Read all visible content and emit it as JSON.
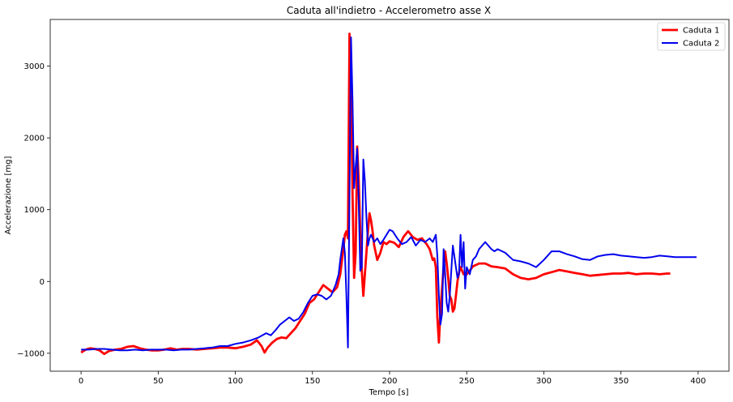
{
  "chart_data": {
    "type": "line",
    "title": "Caduta all'indietro - Accelerometro asse X",
    "xlabel": "Tempo [s]",
    "ylabel": "Accelerazione [mg]",
    "xlim": [
      -20,
      420
    ],
    "ylim": [
      -1250,
      3650
    ],
    "xticks": [
      0,
      50,
      100,
      150,
      200,
      250,
      300,
      350,
      400
    ],
    "yticks": [
      -1000,
      0,
      1000,
      2000,
      3000
    ],
    "grid": false,
    "legend_position": "top-right",
    "series": [
      {
        "name": "Caduta 1",
        "color": "#ff0000",
        "x": [
          0,
          3,
          6,
          9,
          12,
          15,
          18,
          22,
          26,
          30,
          34,
          38,
          42,
          46,
          50,
          54,
          58,
          62,
          66,
          70,
          75,
          80,
          85,
          90,
          95,
          100,
          105,
          110,
          114,
          117,
          119,
          121,
          124,
          127,
          130,
          133,
          136,
          139,
          142,
          145,
          148,
          151,
          154,
          157,
          160,
          163,
          166,
          168,
          170,
          171,
          172,
          173,
          174,
          175,
          176,
          177,
          178,
          179,
          180,
          181,
          182,
          183,
          184,
          185,
          186,
          187,
          188,
          189,
          190,
          192,
          194,
          196,
          198,
          200,
          203,
          206,
          209,
          212,
          215,
          218,
          221,
          224,
          226,
          228,
          229,
          230,
          231,
          232,
          233,
          234,
          235,
          236,
          237,
          238,
          239,
          240,
          241,
          242,
          243,
          244,
          245,
          246,
          247,
          248,
          250,
          252,
          254,
          256,
          258,
          262,
          266,
          270,
          275,
          280,
          285,
          290,
          295,
          300,
          305,
          310,
          315,
          320,
          325,
          330,
          335,
          340,
          345,
          350,
          355,
          360,
          365,
          370,
          375,
          380,
          382
        ],
        "y": [
          -990,
          -950,
          -930,
          -940,
          -960,
          -1010,
          -970,
          -950,
          -940,
          -910,
          -900,
          -930,
          -950,
          -960,
          -960,
          -950,
          -930,
          -950,
          -940,
          -940,
          -950,
          -940,
          -930,
          -920,
          -920,
          -930,
          -910,
          -880,
          -820,
          -900,
          -990,
          -920,
          -850,
          -800,
          -780,
          -790,
          -720,
          -650,
          -550,
          -450,
          -300,
          -250,
          -150,
          -50,
          -100,
          -150,
          -80,
          100,
          450,
          650,
          700,
          600,
          3450,
          2800,
          1200,
          50,
          400,
          1880,
          1400,
          700,
          150,
          -200,
          100,
          400,
          700,
          950,
          850,
          700,
          500,
          300,
          400,
          550,
          520,
          560,
          540,
          480,
          620,
          700,
          620,
          580,
          600,
          520,
          450,
          300,
          320,
          200,
          -500,
          -850,
          -400,
          -100,
          200,
          420,
          250,
          50,
          -200,
          -250,
          -420,
          -380,
          -200,
          0,
          120,
          200,
          150,
          100,
          100,
          150,
          210,
          230,
          250,
          250,
          210,
          200,
          180,
          100,
          50,
          30,
          50,
          100,
          130,
          160,
          140,
          120,
          100,
          80,
          90,
          100,
          110,
          110,
          120,
          100,
          110,
          110,
          100,
          110,
          110
        ]
      },
      {
        "name": "Caduta 2",
        "color": "#0000ee",
        "x": [
          0,
          5,
          10,
          15,
          20,
          25,
          30,
          35,
          40,
          45,
          50,
          55,
          60,
          65,
          70,
          75,
          80,
          85,
          90,
          95,
          100,
          105,
          110,
          115,
          120,
          123,
          126,
          129,
          132,
          135,
          138,
          141,
          144,
          147,
          150,
          153,
          156,
          159,
          162,
          165,
          167,
          168,
          170,
          171,
          172,
          173,
          174,
          175,
          176,
          177,
          178,
          179,
          180,
          181,
          182,
          183,
          184,
          185,
          186,
          187,
          188,
          190,
          192,
          194,
          196,
          198,
          200,
          202,
          205,
          208,
          211,
          214,
          217,
          220,
          223,
          226,
          228,
          230,
          231,
          232,
          233,
          234,
          235,
          236,
          237,
          238,
          239,
          240,
          241,
          242,
          243,
          244,
          245,
          246,
          247,
          248,
          249,
          250,
          252,
          254,
          256,
          258,
          260,
          262,
          264,
          266,
          268,
          270,
          275,
          280,
          285,
          290,
          295,
          300,
          305,
          310,
          315,
          320,
          325,
          330,
          335,
          340,
          345,
          350,
          355,
          360,
          365,
          370,
          375,
          380,
          385,
          390,
          395,
          399
        ],
        "y": [
          -950,
          -950,
          -940,
          -940,
          -950,
          -960,
          -960,
          -950,
          -960,
          -950,
          -950,
          -950,
          -960,
          -950,
          -950,
          -940,
          -930,
          -920,
          -900,
          -900,
          -870,
          -850,
          -820,
          -780,
          -720,
          -750,
          -680,
          -600,
          -550,
          -500,
          -550,
          -520,
          -430,
          -300,
          -200,
          -180,
          -200,
          -250,
          -200,
          -50,
          100,
          300,
          600,
          400,
          -200,
          -920,
          1200,
          3400,
          2500,
          1300,
          1600,
          1850,
          1100,
          150,
          200,
          1700,
          1400,
          900,
          500,
          600,
          650,
          550,
          600,
          520,
          580,
          650,
          720,
          700,
          600,
          520,
          550,
          620,
          500,
          580,
          550,
          600,
          550,
          650,
          350,
          -200,
          -600,
          -450,
          450,
          100,
          -300,
          -420,
          -200,
          150,
          500,
          350,
          200,
          50,
          100,
          650,
          200,
          550,
          -100,
          200,
          100,
          300,
          350,
          450,
          500,
          550,
          500,
          450,
          420,
          450,
          400,
          300,
          280,
          250,
          200,
          300,
          420,
          420,
          380,
          350,
          310,
          300,
          350,
          370,
          380,
          360,
          350,
          340,
          330,
          340,
          360,
          350,
          340,
          340,
          340,
          340
        ]
      }
    ]
  }
}
